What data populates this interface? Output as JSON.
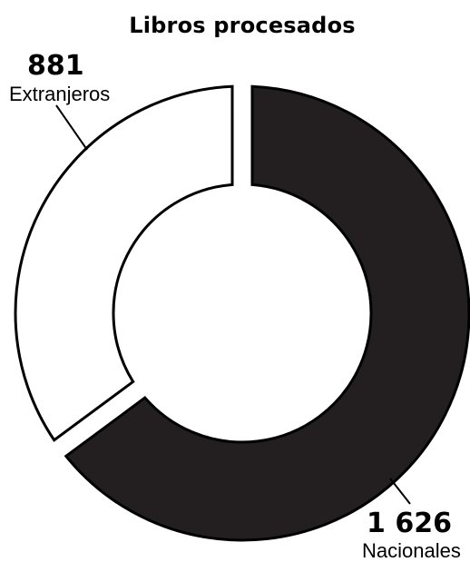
{
  "chart_data": {
    "type": "pie",
    "title": "Libros procesados",
    "slices": [
      {
        "label": "Nacionales",
        "value": 1626,
        "value_label": "1 626",
        "color": "#231f20"
      },
      {
        "label": "Extranjeros",
        "value": 881,
        "value_label": "881",
        "color": "#ffffff"
      }
    ],
    "donut": true
  }
}
